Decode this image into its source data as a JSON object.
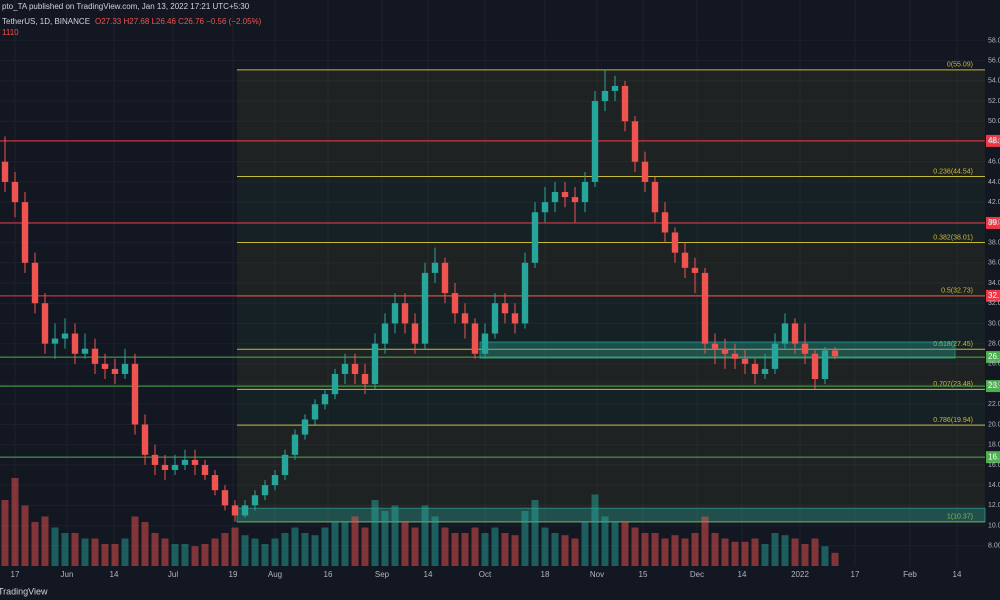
{
  "header": {
    "publisher": "pto_TA published on TradingView.com, Jan 13, 2022 17:21 UTC+5:30",
    "symbol": "TetherUS, 1D, BINANCE",
    "ohlc": "O27.33 H27.68 L26.46 C26.76 −0.56 (−2.05%)",
    "extra": "1110"
  },
  "footer": {
    "brand": "TradingView"
  },
  "chart_data": {
    "type": "candlestick",
    "up_color": "#26a69a",
    "down_color": "#ef5350",
    "xlim": [
      -0.5,
      98
    ],
    "ylim": [
      6,
      62
    ],
    "xticks": [
      {
        "value": 1,
        "label": "17"
      },
      {
        "value": 6.2,
        "label": "Jun"
      },
      {
        "value": 10.9,
        "label": "14"
      },
      {
        "value": 16.8,
        "label": "Jul"
      },
      {
        "value": 22.8,
        "label": "19"
      },
      {
        "value": 27,
        "label": "Aug"
      },
      {
        "value": 32.3,
        "label": "16"
      },
      {
        "value": 37.7,
        "label": "Sep"
      },
      {
        "value": 42.3,
        "label": "14"
      },
      {
        "value": 48,
        "label": "Oct"
      },
      {
        "value": 54,
        "label": "18"
      },
      {
        "value": 59.2,
        "label": "Nov"
      },
      {
        "value": 63.8,
        "label": "15"
      },
      {
        "value": 69.2,
        "label": "Dec"
      },
      {
        "value": 73.7,
        "label": "14"
      },
      {
        "value": 79.5,
        "label": "2022"
      },
      {
        "value": 85,
        "label": "17"
      },
      {
        "value": 90.5,
        "label": "Feb"
      },
      {
        "value": 95.2,
        "label": "14"
      }
    ],
    "yticks": [
      {
        "value": 8,
        "label": "8.00"
      },
      {
        "value": 10,
        "label": "10.00"
      },
      {
        "value": 12,
        "label": "12.00"
      },
      {
        "value": 14,
        "label": "14.00"
      },
      {
        "value": 16,
        "label": "16.00"
      },
      {
        "value": 18,
        "label": "18.00"
      },
      {
        "value": 20,
        "label": "20.00"
      },
      {
        "value": 22,
        "label": "22.00"
      },
      {
        "value": 24,
        "label": "24.00"
      },
      {
        "value": 26,
        "label": "26.00"
      },
      {
        "value": 28,
        "label": "28.00"
      },
      {
        "value": 30,
        "label": "30.00"
      },
      {
        "value": 32,
        "label": "32.00"
      },
      {
        "value": 34,
        "label": "34.00"
      },
      {
        "value": 36,
        "label": "36.00"
      },
      {
        "value": 38,
        "label": "38.00"
      },
      {
        "value": 40,
        "label": "40.00"
      },
      {
        "value": 42,
        "label": "42.00"
      },
      {
        "value": 44,
        "label": "44.00"
      },
      {
        "value": 46,
        "label": "46.00"
      },
      {
        "value": 48,
        "label": "48.00"
      },
      {
        "value": 50,
        "label": "50.00"
      },
      {
        "value": 52,
        "label": "52.00"
      },
      {
        "value": 54,
        "label": "54.00"
      },
      {
        "value": 56,
        "label": "56.00"
      },
      {
        "value": 58,
        "label": "58.00"
      }
    ],
    "grid": true,
    "open": [
      46,
      44,
      42,
      36,
      32,
      28,
      28.5,
      29,
      27,
      27.5,
      26,
      25.5,
      25,
      26,
      20,
      17,
      16,
      15.5,
      16,
      16.5,
      16,
      15,
      13.5,
      12,
      11,
      12,
      13,
      14,
      15,
      17,
      19,
      20.5,
      22,
      23,
      25,
      26,
      25,
      24,
      28,
      30,
      32,
      30,
      28,
      35,
      36,
      33,
      31,
      30,
      27,
      29,
      32,
      31,
      30,
      36,
      41,
      42,
      43,
      42.5,
      42,
      44,
      52,
      53,
      53.5,
      50,
      46,
      44,
      41,
      39,
      37,
      35.5,
      35,
      28,
      27.5,
      27,
      26.5,
      26,
      25,
      25.5,
      28,
      30,
      28,
      27,
      24.5,
      27.33
    ],
    "high": [
      48.5,
      45,
      43,
      37,
      33,
      30,
      30.5,
      30,
      29,
      28.5,
      27,
      26.5,
      27.5,
      27,
      21,
      18,
      17,
      17,
      17.5,
      17.5,
      16.5,
      15.5,
      14,
      12.5,
      12.5,
      13.5,
      14.5,
      15.5,
      17.5,
      19.5,
      21,
      22.5,
      23.5,
      25.5,
      27,
      27,
      26,
      29,
      31,
      33,
      33,
      31,
      36,
      37.5,
      36.5,
      34,
      32,
      30.5,
      30,
      33,
      33,
      32,
      37,
      42,
      43.5,
      44,
      44,
      43.5,
      45,
      53,
      55.09,
      54.5,
      54,
      50.5,
      47,
      44.5,
      42,
      39.5,
      38,
      36.5,
      35.5,
      29,
      28.5,
      28,
      27.5,
      26.5,
      27,
      29,
      31,
      30.5,
      30,
      27.5,
      27.68,
      27.68
    ],
    "low": [
      43,
      40.5,
      35,
      31,
      27,
      26.5,
      27.5,
      26,
      26.5,
      25,
      24.5,
      24,
      24.5,
      19,
      16,
      15,
      14.5,
      15,
      15.5,
      15,
      14.5,
      13,
      11.5,
      10.37,
      10.8,
      11.5,
      12.5,
      13.5,
      14.5,
      16.5,
      18.5,
      20,
      21.5,
      22.5,
      24,
      24,
      23,
      23.5,
      27,
      29,
      29,
      27,
      27.5,
      34,
      32,
      30,
      28.5,
      26.5,
      26.5,
      28.5,
      30,
      29,
      29.5,
      35.5,
      40,
      41,
      41.5,
      40,
      41,
      43.5,
      51,
      52,
      49,
      45,
      43,
      40,
      38,
      36,
      34.5,
      33,
      27,
      26,
      25.5,
      25.5,
      25,
      24,
      24.5,
      25,
      27.5,
      27,
      26,
      23.5,
      24,
      26.46
    ],
    "close": [
      44,
      42,
      36,
      32,
      28,
      28.5,
      29,
      27,
      27.5,
      26,
      25.5,
      25,
      26,
      20,
      17,
      16,
      15.5,
      16,
      16.5,
      16,
      15,
      13.5,
      12,
      11,
      12,
      13,
      14,
      15,
      17,
      19,
      20.5,
      22,
      23,
      25,
      26,
      25,
      24,
      28,
      30,
      32,
      30,
      28,
      35,
      36,
      33,
      31,
      30,
      27,
      29,
      32,
      31,
      30,
      36,
      41,
      42,
      43,
      42.5,
      42,
      44,
      52,
      53,
      53.5,
      50,
      46,
      44,
      41,
      39,
      37,
      35.5,
      35,
      28,
      27.5,
      27,
      26.5,
      26,
      25,
      25.5,
      28,
      30,
      28,
      27,
      24.5,
      27.33,
      26.76
    ],
    "volume": [
      60,
      80,
      55,
      40,
      45,
      35,
      30,
      30,
      25,
      25,
      20,
      20,
      25,
      45,
      40,
      30,
      25,
      20,
      20,
      18,
      20,
      25,
      30,
      35,
      28,
      25,
      20,
      25,
      30,
      35,
      30,
      28,
      35,
      40,
      40,
      45,
      35,
      60,
      50,
      55,
      40,
      35,
      55,
      45,
      35,
      30,
      30,
      35,
      30,
      35,
      30,
      28,
      50,
      60,
      35,
      30,
      28,
      25,
      40,
      65,
      45,
      40,
      40,
      35,
      30,
      30,
      25,
      28,
      25,
      30,
      45,
      30,
      25,
      22,
      22,
      25,
      20,
      30,
      28,
      25,
      20,
      25,
      18,
      12
    ],
    "volume_lim": [
      0,
      100
    ],
    "fib_start": 23.2,
    "fib_color": "#c9b93a",
    "fib_levels": [
      {
        "value": 55.09,
        "label": "0(55.09)"
      },
      {
        "value": 44.54,
        "label": "0.236(44.54)"
      },
      {
        "value": 38.01,
        "label": "0.382(38.01)"
      },
      {
        "value": 32.73,
        "label": "0.5(32.73)"
      },
      {
        "value": 27.45,
        "label": "0.618(27.45)"
      },
      {
        "value": 23.48,
        "label": "0.707(23.48)"
      },
      {
        "value": 19.94,
        "label": "0.786(19.94)"
      },
      {
        "value": 10.37,
        "label": "1(10.37)"
      }
    ],
    "levels": [
      {
        "value": 48.06,
        "label": "48.",
        "color": "#f23645"
      },
      {
        "value": 39.94,
        "label": "39.",
        "color": "#f23645"
      },
      {
        "value": 32.73,
        "label": "32.",
        "color": "#f23645"
      },
      {
        "value": 26.67,
        "label": "26.",
        "color": "#4caf50"
      },
      {
        "value": 23.8,
        "label": "23.",
        "color": "#4caf50"
      },
      {
        "value": 16.77,
        "label": "16.",
        "color": "#4caf50"
      }
    ],
    "zones": [
      {
        "from": 47.5,
        "to": 95,
        "low": 26.57,
        "high": 28.16
      },
      {
        "from": 23.2,
        "to": 98,
        "low": 10.37,
        "high": 11.72
      }
    ],
    "zone_color": "#26a69a"
  }
}
